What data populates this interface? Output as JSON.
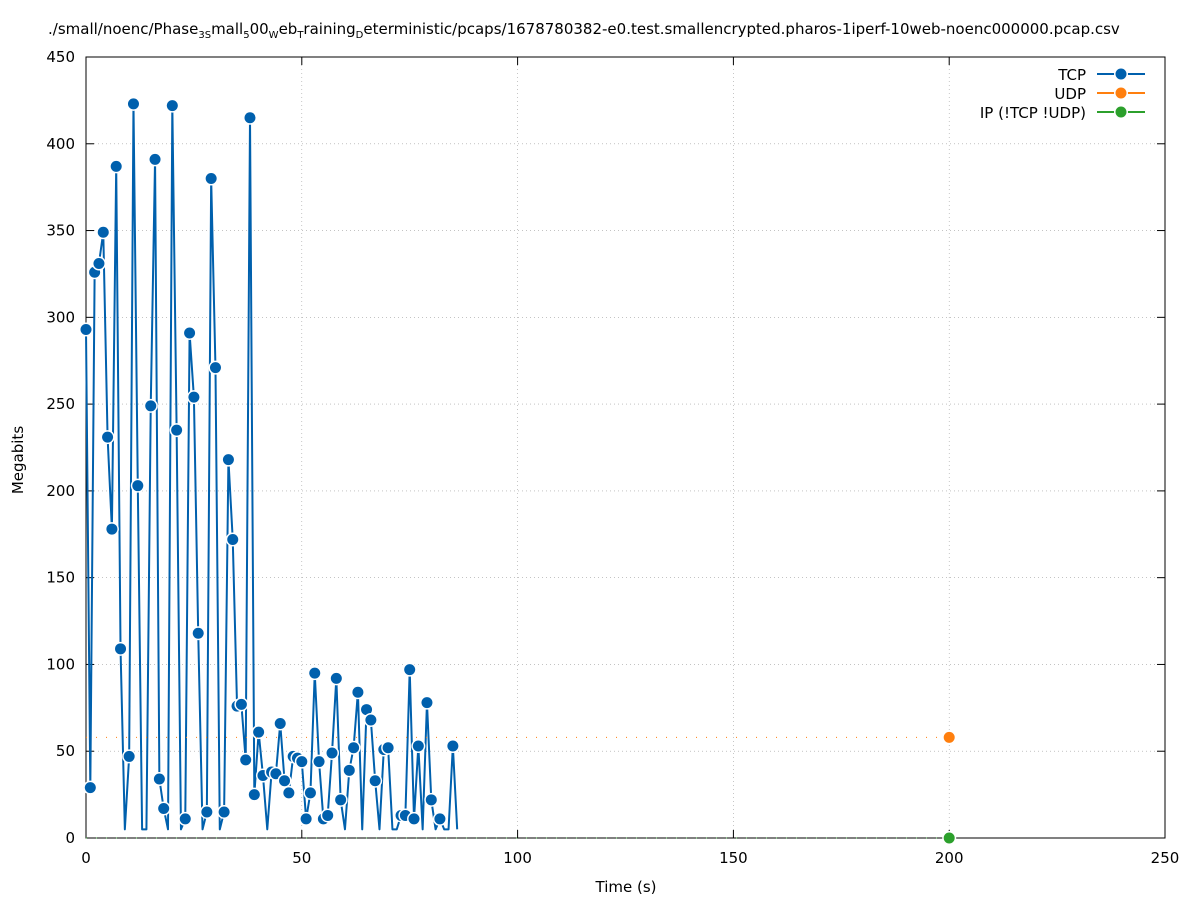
{
  "chart_data": {
    "type": "line",
    "title_parts": [
      {
        "text": "./small/noenc/Phase",
        "sub": false
      },
      {
        "text": "3S",
        "sub": true
      },
      {
        "text": "mall",
        "sub": false
      },
      {
        "text": "5",
        "sub": true
      },
      {
        "text": "00",
        "sub": false
      },
      {
        "text": "W",
        "sub": true
      },
      {
        "text": "eb",
        "sub": false
      },
      {
        "text": "T",
        "sub": true
      },
      {
        "text": "raining",
        "sub": false
      },
      {
        "text": "D",
        "sub": true
      },
      {
        "text": "eterministic/pcaps/1678780382-e0.test.smallencrypted.pharos-1iperf-10web-noenc000000.pcap.csv",
        "sub": false
      }
    ],
    "xlabel": "Time (s)",
    "ylabel": "Megabits",
    "xlim": [
      0,
      250
    ],
    "ylim": [
      0,
      450
    ],
    "xticks": [
      0,
      50,
      100,
      150,
      200,
      250
    ],
    "yticks": [
      0,
      50,
      100,
      150,
      200,
      250,
      300,
      350,
      400,
      450
    ],
    "grid": true,
    "legend_position": "top-right",
    "series": [
      {
        "name": "TCP",
        "color": "#0060ad",
        "style": "solid",
        "x": [
          0,
          1,
          2,
          3,
          4,
          5,
          6,
          7,
          8,
          9,
          10,
          11,
          12,
          13,
          14,
          15,
          16,
          17,
          18,
          19,
          20,
          21,
          22,
          23,
          24,
          25,
          26,
          27,
          28,
          29,
          30,
          31,
          32,
          33,
          34,
          35,
          36,
          37,
          38,
          39,
          40,
          41,
          42,
          43,
          44,
          45,
          46,
          47,
          48,
          49,
          50,
          51,
          52,
          53,
          54,
          55,
          56,
          57,
          58,
          59,
          60,
          61,
          62,
          63,
          64,
          65,
          66,
          67,
          68,
          69,
          70,
          71,
          72,
          73,
          74,
          75,
          76,
          77,
          78,
          79,
          80,
          81,
          82,
          83,
          84,
          85,
          86
        ],
        "y": [
          293,
          29,
          326,
          331,
          349,
          231,
          178,
          387,
          109,
          5,
          47,
          423,
          203,
          5,
          5,
          249,
          391,
          34,
          17,
          5,
          422,
          235,
          5,
          11,
          291,
          254,
          118,
          5,
          15,
          380,
          271,
          5,
          15,
          218,
          172,
          76,
          77,
          45,
          415,
          25,
          61,
          36,
          5,
          38,
          37,
          66,
          33,
          26,
          47,
          46,
          44,
          11,
          26,
          95,
          44,
          11,
          13,
          49,
          92,
          22,
          5,
          39,
          52,
          84,
          5,
          74,
          68,
          33,
          5,
          51,
          52,
          5,
          5,
          13,
          13,
          97,
          11,
          53,
          5,
          78,
          22,
          5,
          11,
          5,
          5,
          53,
          5
        ]
      },
      {
        "name": "UDP",
        "color": "#ff7f0e",
        "style": "dashed",
        "x": [
          0,
          200
        ],
        "y": [
          58,
          58
        ]
      },
      {
        "name": "IP (!TCP  !UDP)",
        "color": "#2ca02c",
        "style": "dashed",
        "x": [
          0,
          200
        ],
        "y": [
          0,
          0
        ]
      }
    ]
  }
}
